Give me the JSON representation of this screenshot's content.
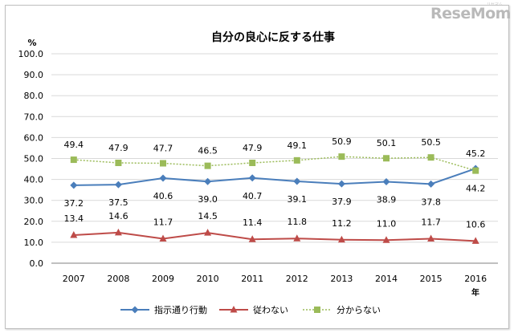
{
  "watermark": {
    "brand": "ReseMom",
    "tag": "リセマム"
  },
  "chart_data": {
    "type": "line",
    "title": "自分の良心に反する仕事",
    "ylabel": "%",
    "xlabel": "年",
    "ylim": [
      0,
      100
    ],
    "yticks": [
      "100.0",
      "90.0",
      "80.0",
      "70.0",
      "60.0",
      "50.0",
      "40.0",
      "30.0",
      "20.0",
      "10.0",
      "0.0"
    ],
    "categories": [
      "2007",
      "2008",
      "2009",
      "2010",
      "2011",
      "2012",
      "2013",
      "2014",
      "2015",
      "2016"
    ],
    "grid": true,
    "legend_position": "bottom",
    "series": [
      {
        "name": "指示通り行動",
        "color": "#4a7ebb",
        "marker": "diamond",
        "dash": "solid",
        "values": [
          37.2,
          37.5,
          40.6,
          39.0,
          40.7,
          39.1,
          37.9,
          38.9,
          37.8,
          45.2
        ],
        "labels": [
          "37.2",
          "37.5",
          "40.6",
          "39.0",
          "40.7",
          "39.1",
          "37.9",
          "38.9",
          "37.8",
          "45.2"
        ]
      },
      {
        "name": "従わない",
        "color": "#be4b48",
        "marker": "triangle",
        "dash": "solid",
        "values": [
          13.4,
          14.6,
          11.7,
          14.5,
          11.4,
          11.8,
          11.2,
          11.0,
          11.7,
          10.6
        ],
        "labels": [
          "13.4",
          "14.6",
          "11.7",
          "14.5",
          "11.4",
          "11.8",
          "11.2",
          "11.0",
          "11.7",
          "10.6"
        ]
      },
      {
        "name": "分からない",
        "color": "#9bbb59",
        "marker": "square",
        "dash": "dotted",
        "values": [
          49.4,
          47.9,
          47.7,
          46.5,
          47.9,
          49.1,
          50.9,
          50.1,
          50.5,
          44.2
        ],
        "labels": [
          "49.4",
          "47.9",
          "47.7",
          "46.5",
          "47.9",
          "49.1",
          "50.9",
          "50.1",
          "50.5",
          "44.2"
        ]
      }
    ]
  }
}
